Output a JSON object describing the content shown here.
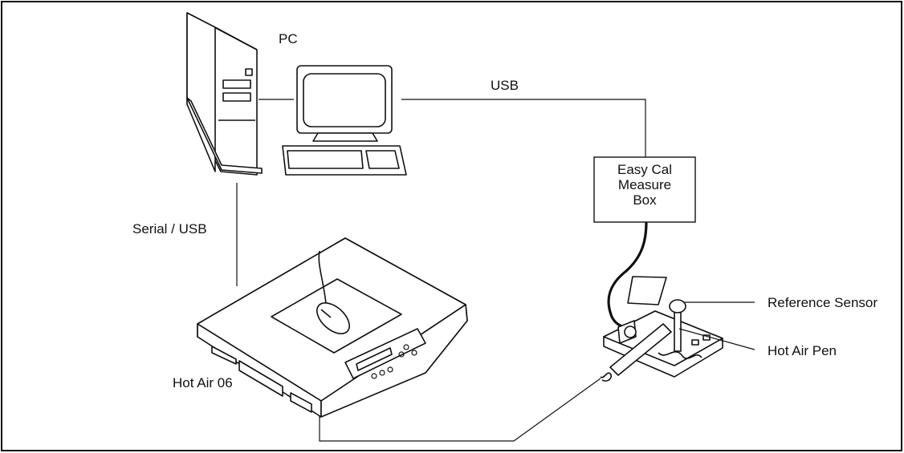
{
  "labels": {
    "pc": "PC",
    "usb": "USB",
    "serial_usb": "Serial / USB",
    "hot_air_06": "Hot Air 06",
    "reference_sensor": "Reference Sensor",
    "hot_air_pen": "Hot Air Pen"
  },
  "measure_box": {
    "line1": "Easy Cal",
    "line2": "Measure",
    "line3": "Box"
  },
  "colors": {
    "stroke": "#111111",
    "background": "#ffffff"
  }
}
